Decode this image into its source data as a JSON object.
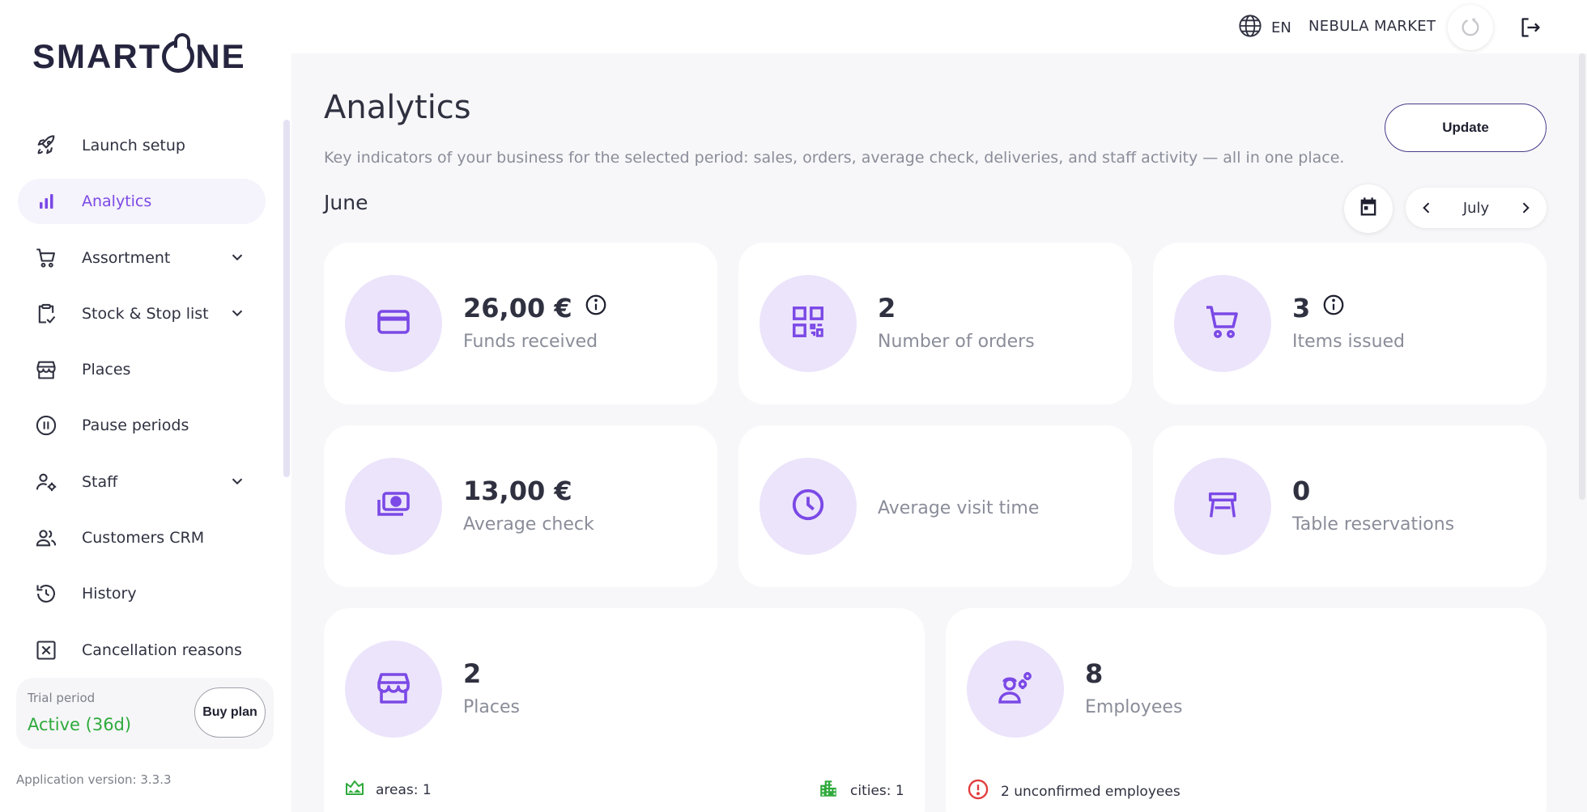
{
  "app": {
    "logo_left": "SMART",
    "logo_right": "NE"
  },
  "sidebar": {
    "items": [
      {
        "label": "Launch setup",
        "icon": "rocket-icon"
      },
      {
        "label": "Analytics",
        "icon": "bar-chart-icon",
        "active": true
      },
      {
        "label": "Assortment",
        "icon": "cart-icon",
        "has_children": true
      },
      {
        "label": "Stock & Stop list",
        "icon": "clipboard-check-icon",
        "has_children": true
      },
      {
        "label": "Places",
        "icon": "store-icon"
      },
      {
        "label": "Pause periods",
        "icon": "pause-icon"
      },
      {
        "label": "Staff",
        "icon": "staff-settings-icon",
        "has_children": true
      },
      {
        "label": "Customers CRM",
        "icon": "users-icon"
      },
      {
        "label": "History",
        "icon": "history-icon"
      },
      {
        "label": "Cancellation reasons",
        "icon": "cancel-box-icon"
      }
    ],
    "trial": {
      "title": "Trial period",
      "status": "Active (36d)",
      "buy_label": "Buy plan"
    },
    "version": "Application version: 3.3.3"
  },
  "topbar": {
    "language": "EN",
    "store_name": "NEBULA MARKET"
  },
  "main": {
    "title": "Analytics",
    "subtitle": "Key indicators of your business for the selected period: sales, orders, average check, deliveries, and staff activity — all in one place.",
    "update_label": "Update",
    "period_label": "June",
    "nav_month": "July"
  },
  "cards": {
    "funds": {
      "value": "26,00 €",
      "label": "Funds received"
    },
    "orders": {
      "value": "2",
      "label": "Number of orders"
    },
    "items": {
      "value": "3",
      "label": "Items issued"
    },
    "avg_check": {
      "value": "13,00 €",
      "label": "Average check"
    },
    "visit_time": {
      "label": "Average visit time"
    },
    "reservations": {
      "value": "0",
      "label": "Table reservations"
    },
    "places": {
      "value": "2",
      "label": "Places",
      "areas": "areas: 1",
      "cities": "cities: 1"
    },
    "employees": {
      "value": "8",
      "label": "Employees",
      "warning": "2 unconfirmed employees"
    }
  },
  "colors": {
    "accent": "#7b49e6",
    "icon_circle": "#ece4fb",
    "success": "#2eaa3c",
    "danger": "#e23b3b"
  }
}
